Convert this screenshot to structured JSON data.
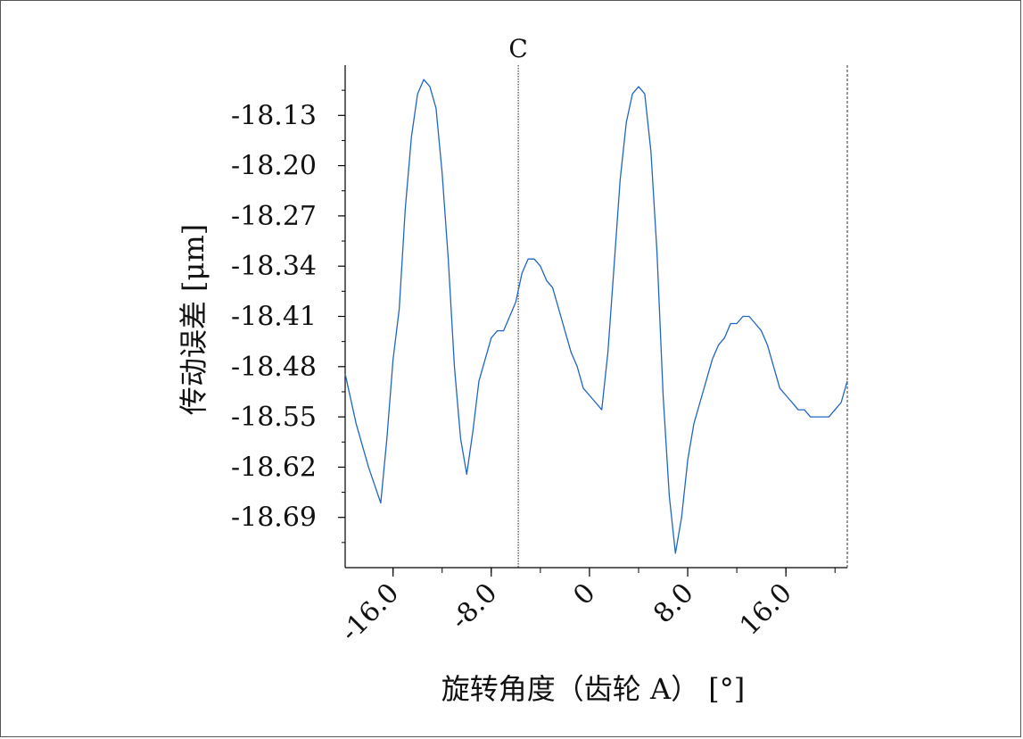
{
  "chart_data": {
    "type": "line",
    "xlabel": "旋转角度（齿轮 A） [°]",
    "ylabel": "传动误差 [μm]",
    "xlim": [
      -19.9,
      21.0
    ],
    "ylim": [
      -18.76,
      -18.06
    ],
    "x_ticks": [
      -16.0,
      -8.0,
      0,
      8.0,
      16.0
    ],
    "x_tick_labels": [
      "-16.0",
      "-8.0",
      "0",
      "8.0",
      "16.0"
    ],
    "y_ticks": [
      -18.13,
      -18.2,
      -18.27,
      -18.34,
      -18.41,
      -18.48,
      -18.55,
      -18.62,
      -18.69
    ],
    "y_tick_labels": [
      "-18.13",
      "-18.20",
      "-18.27",
      "-18.34",
      "-18.41",
      "-18.48",
      "-18.55",
      "-18.62",
      "-18.69"
    ],
    "marker": {
      "label": "C",
      "x": -5.8
    },
    "grid": false,
    "line_color": "#1f66c4",
    "series": [
      {
        "x": [
          -19.9,
          -19.0,
          -18.0,
          -17.0,
          -16.5,
          -16.0,
          -15.5,
          -15.0,
          -14.5,
          -14.0,
          -13.5,
          -13.0,
          -12.5,
          -12.0,
          -11.5,
          -11.0,
          -10.5,
          -10.0,
          -9.5,
          -9.0,
          -8.5,
          -8.0,
          -7.5,
          -7.0,
          -6.5,
          -6.0,
          -5.5,
          -5.0,
          -4.5,
          -4.0,
          -3.5,
          -3.0,
          -2.5,
          -2.0,
          -1.5,
          -1.0,
          -0.5,
          0.0,
          0.5,
          1.0,
          1.5,
          2.0,
          2.5,
          3.0,
          3.5,
          4.0,
          4.5,
          5.0,
          5.5,
          6.0,
          6.5,
          7.0,
          7.5,
          8.0,
          8.5,
          9.0,
          9.5,
          10.0,
          10.5,
          11.0,
          11.5,
          12.0,
          12.5,
          13.0,
          13.5,
          14.0,
          14.5,
          15.0,
          15.5,
          16.0,
          16.5,
          17.0,
          17.5,
          18.0,
          18.5,
          19.0,
          19.5,
          20.0,
          20.5,
          21.0
        ],
        "y": [
          -18.49,
          -18.56,
          -18.62,
          -18.67,
          -18.58,
          -18.47,
          -18.4,
          -18.26,
          -18.16,
          -18.1,
          -18.08,
          -18.09,
          -18.12,
          -18.21,
          -18.33,
          -18.48,
          -18.58,
          -18.63,
          -18.57,
          -18.5,
          -18.47,
          -18.44,
          -18.43,
          -18.43,
          -18.41,
          -18.39,
          -18.35,
          -18.33,
          -18.33,
          -18.34,
          -18.36,
          -18.37,
          -18.4,
          -18.43,
          -18.46,
          -18.48,
          -18.51,
          -18.52,
          -18.53,
          -18.54,
          -18.46,
          -18.34,
          -18.22,
          -18.14,
          -18.1,
          -18.09,
          -18.1,
          -18.18,
          -18.32,
          -18.52,
          -18.66,
          -18.74,
          -18.69,
          -18.61,
          -18.56,
          -18.53,
          -18.5,
          -18.47,
          -18.45,
          -18.44,
          -18.42,
          -18.42,
          -18.41,
          -18.41,
          -18.42,
          -18.43,
          -18.45,
          -18.48,
          -18.51,
          -18.52,
          -18.53,
          -18.54,
          -18.54,
          -18.55,
          -18.55,
          -18.55,
          -18.55,
          -18.54,
          -18.53,
          -18.5
        ]
      }
    ]
  }
}
